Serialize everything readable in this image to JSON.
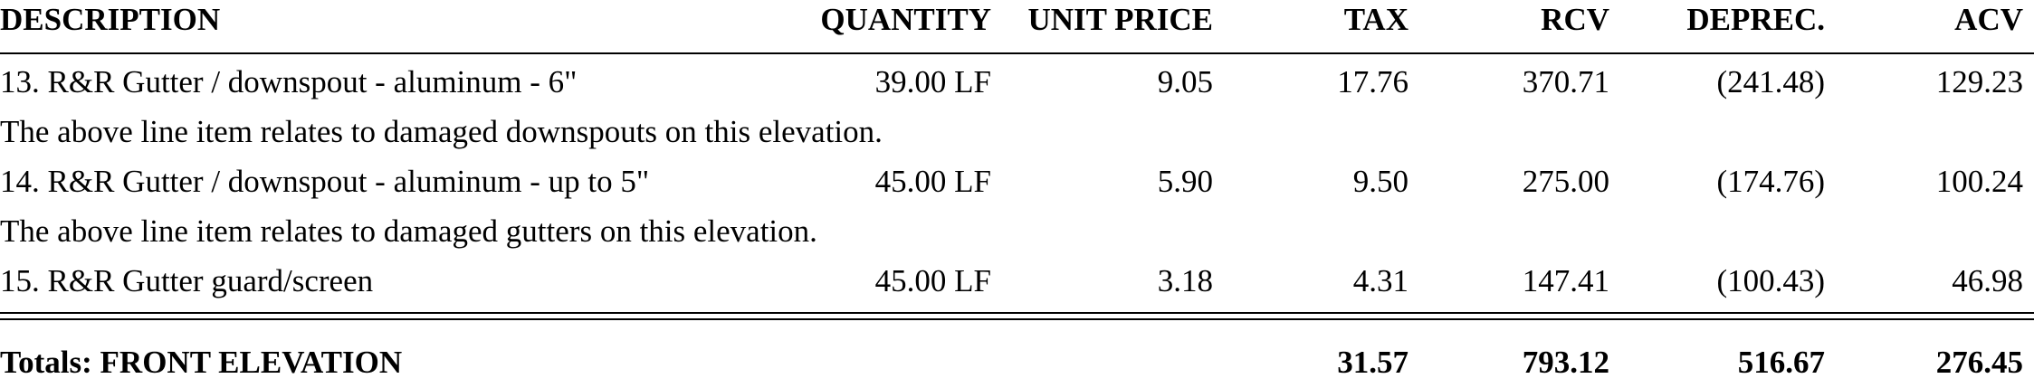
{
  "header": {
    "description": "DESCRIPTION",
    "quantity": "QUANTITY",
    "unit_price": "UNIT PRICE",
    "tax": "TAX",
    "rcv": "RCV",
    "deprec": "DEPREC.",
    "acv": "ACV"
  },
  "line_items": [
    {
      "description": "13.  R&R Gutter / downspout - aluminum - 6\"",
      "quantity": "39.00 LF",
      "unit_price": "9.05",
      "tax": "17.76",
      "rcv": "370.71",
      "deprec": "(241.48)",
      "acv": "129.23",
      "note": "The above line item relates to damaged downspouts on this elevation."
    },
    {
      "description": "14.  R&R Gutter / downspout - aluminum - up to 5\"",
      "quantity": "45.00 LF",
      "unit_price": "5.90",
      "tax": "9.50",
      "rcv": "275.00",
      "deprec": "(174.76)",
      "acv": "100.24",
      "note": "The above line item relates to damaged gutters on this elevation."
    },
    {
      "description": "15.  R&R Gutter guard/screen",
      "quantity": "45.00 LF",
      "unit_price": "3.18",
      "tax": "4.31",
      "rcv": "147.41",
      "deprec": "(100.43)",
      "acv": "46.98"
    }
  ],
  "totals": {
    "label": "Totals:  FRONT ELEVATION",
    "tax": "31.57",
    "rcv": "793.12",
    "deprec": "516.67",
    "acv": "276.45"
  }
}
